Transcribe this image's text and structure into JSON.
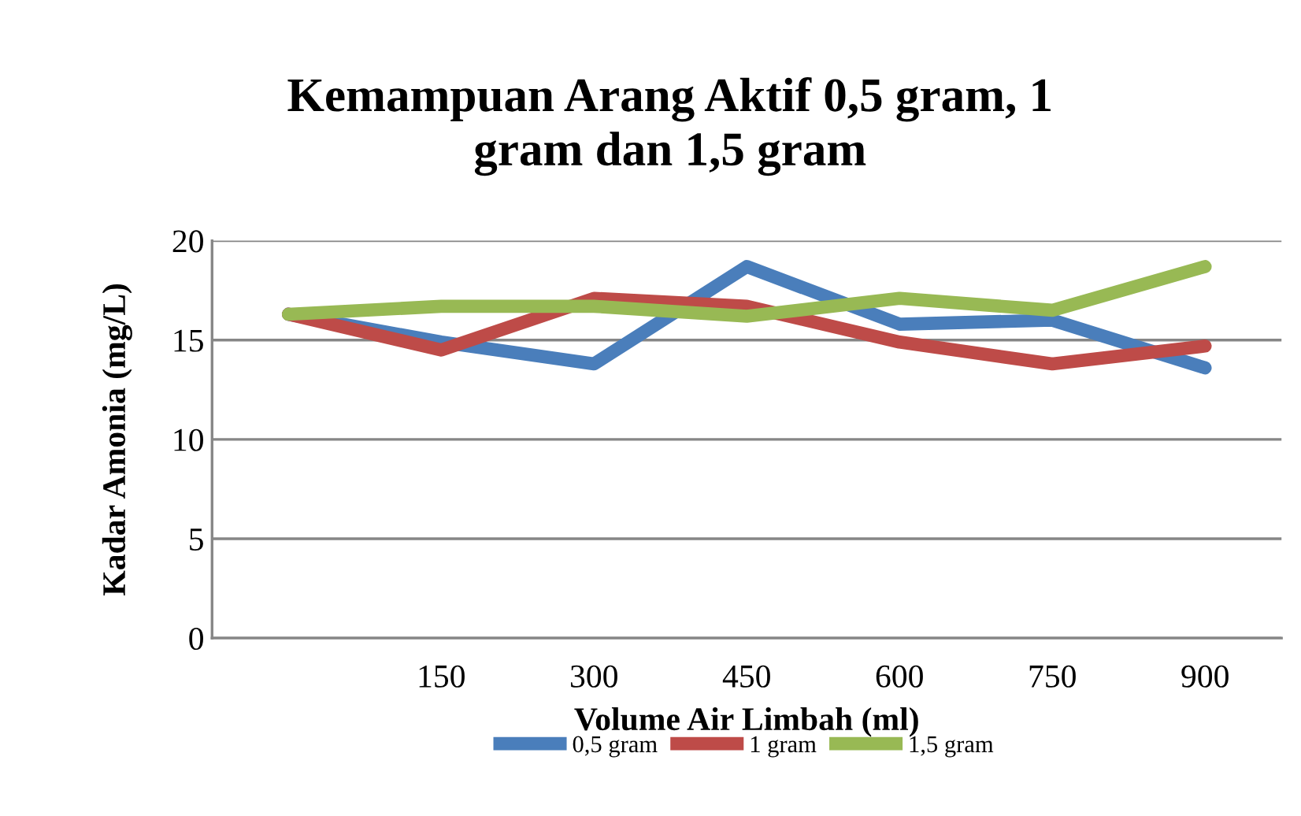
{
  "chart_data": {
    "type": "line",
    "title": "Kemampuan Arang Aktif 0,5 gram, 1\ngram dan 1,5 gram",
    "xlabel": "Volume Air Limbah (ml)",
    "ylabel": "Kadar Amonia (mg/L)",
    "categories": [
      null,
      "150",
      "300",
      "450",
      "600",
      "750",
      "900"
    ],
    "series": [
      {
        "name": "0,5 gram",
        "color": "#4a7ebb",
        "values": [
          16.3,
          14.9,
          13.8,
          18.7,
          15.8,
          16.0,
          13.6
        ]
      },
      {
        "name": "1 gram",
        "color": "#be4b48",
        "values": [
          16.3,
          14.5,
          17.1,
          16.7,
          14.9,
          13.8,
          14.7
        ]
      },
      {
        "name": "1,5 gram",
        "color": "#98b954",
        "values": [
          16.3,
          16.7,
          16.7,
          16.2,
          17.1,
          16.5,
          18.7
        ]
      }
    ],
    "ylim": [
      0,
      20
    ],
    "yticks": [
      0,
      5,
      10,
      15,
      20
    ],
    "grid": "y",
    "legend": "bottom",
    "marker": "none",
    "line_style": "solid"
  }
}
